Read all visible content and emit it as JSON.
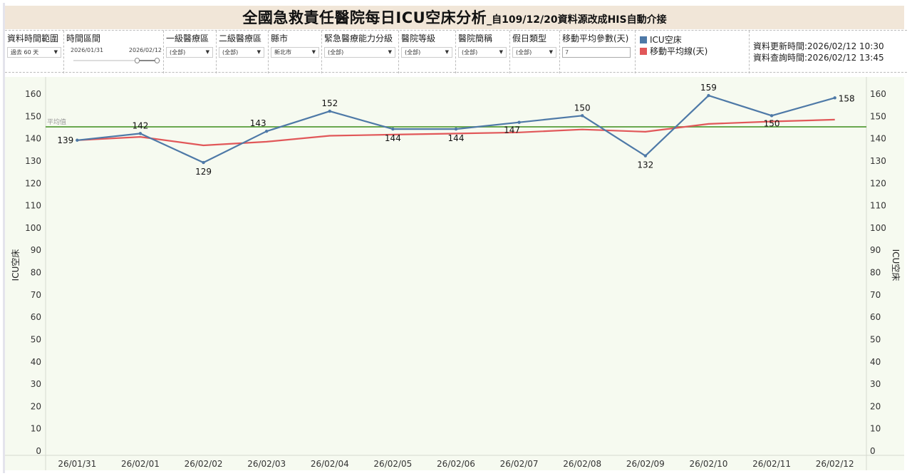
{
  "header": {
    "title": "全國急救責任醫院每日ICU空床分析",
    "subtitle": "_自109/12/20資料源改成HIS自動介接"
  },
  "filters": {
    "time_range": {
      "label": "資料時間範圍",
      "value": "過去 60 天"
    },
    "date_interval": {
      "label": "時間區間",
      "start": "2026/01/31",
      "end": "2026/02/12"
    },
    "level1_region": {
      "label": "一級醫療區",
      "value": "(全部)"
    },
    "level2_region": {
      "label": "二級醫療區",
      "value": "(全部)"
    },
    "county": {
      "label": "縣市",
      "value": "新北市"
    },
    "emergency_capability": {
      "label": "緊急醫療能力分級",
      "value": "(全部)"
    },
    "hospital_level": {
      "label": "醫院等級",
      "value": "(全部)"
    },
    "hospital_name": {
      "label": "醫院簡稱",
      "value": "(全部)"
    },
    "holiday_type": {
      "label": "假日類型",
      "value": "(全部)"
    },
    "moving_avg_param": {
      "label": "移動平均參數(天)",
      "value": "7"
    }
  },
  "legend": {
    "items": [
      {
        "label": "ICU空床",
        "color": "#4e79a7"
      },
      {
        "label": "移動平均線(天)",
        "color": "#e15759"
      }
    ]
  },
  "info": {
    "updated": "資料更新時間:2026/02/12 10:30",
    "queried": "資料查詢時間:2026/02/12 13:45"
  },
  "chart_data": {
    "type": "line",
    "title": "全國急救責任醫院每日ICU空床分析",
    "xlabel": "",
    "ylabel": "ICU空床",
    "ylabel_right": "ICU空床",
    "ylim": [
      0,
      165
    ],
    "yticks": [
      0,
      10,
      20,
      30,
      40,
      50,
      60,
      70,
      80,
      90,
      100,
      110,
      120,
      130,
      140,
      150,
      160
    ],
    "categories": [
      "26/01/31",
      "26/02/01",
      "26/02/02",
      "26/02/03",
      "26/02/04",
      "26/02/05",
      "26/02/06",
      "26/02/07",
      "26/02/08",
      "26/02/09",
      "26/02/10",
      "26/02/11",
      "26/02/12"
    ],
    "series": [
      {
        "name": "ICU空床",
        "color": "#4e79a7",
        "values": [
          139,
          142,
          129,
          143,
          152,
          144,
          144,
          147,
          150,
          132,
          159,
          150,
          158
        ],
        "labels_shown": true
      },
      {
        "name": "移動平均線(天)",
        "color": "#e15759",
        "values": [
          139,
          140.5,
          136.7,
          138.3,
          141,
          141.5,
          142,
          142.5,
          143.8,
          142.8,
          146.3,
          147.4,
          148.2
        ],
        "labels_shown": false
      }
    ],
    "reference_line": {
      "label": "平均值",
      "value": 145,
      "color": "#6aa84f"
    },
    "grid": false,
    "legend_position": "top"
  }
}
